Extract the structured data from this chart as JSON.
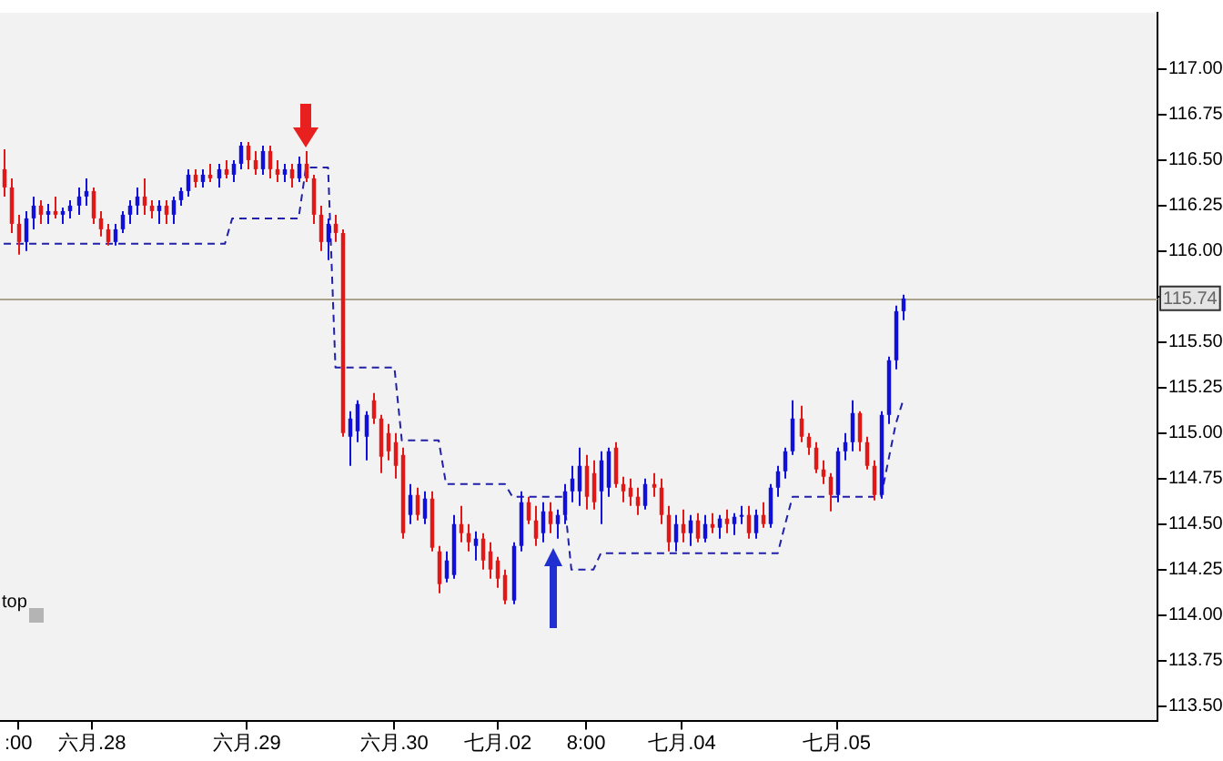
{
  "chart_data": {
    "type": "candlestick",
    "categories": [
      null,
      null,
      ":00",
      null,
      null,
      null,
      null,
      null,
      null,
      null,
      null,
      null,
      "六月.28",
      null,
      null,
      null,
      null,
      null,
      null,
      null,
      null,
      null,
      null,
      null,
      null,
      null,
      null,
      null,
      null,
      null,
      null,
      null,
      null,
      "六月.29",
      null,
      null,
      null,
      null,
      null,
      null,
      null,
      null,
      null,
      null,
      null,
      null,
      null,
      null,
      null,
      null,
      null,
      null,
      null,
      "六月.30",
      null,
      null,
      null,
      null,
      null,
      null,
      null,
      null,
      null,
      null,
      null,
      null,
      null,
      "七月.02",
      null,
      null,
      null,
      null,
      null,
      null,
      null,
      null,
      null,
      null,
      null,
      "8:00",
      null,
      null,
      null,
      null,
      null,
      null,
      null,
      null,
      null,
      null,
      null,
      null,
      "七月.04",
      null,
      null,
      null,
      null,
      null,
      null,
      null,
      null,
      null,
      null,
      null,
      null,
      null,
      null,
      null,
      null,
      null,
      null,
      null,
      null,
      "七月.05",
      null,
      null,
      null,
      null,
      null,
      null,
      null,
      null,
      null,
      null,
      null,
      null,
      null,
      null,
      null,
      null,
      null,
      null,
      null,
      null,
      null,
      null,
      null,
      null,
      null,
      null,
      null,
      null,
      null,
      null,
      null,
      null,
      null,
      null,
      null,
      null,
      null,
      null,
      null,
      null,
      null,
      null,
      null
    ],
    "ohlc": [
      [
        116.45,
        116.56,
        116.3,
        116.35
      ],
      [
        116.35,
        116.4,
        116.1,
        116.15
      ],
      [
        116.15,
        116.2,
        115.98,
        116.05
      ],
      [
        116.05,
        116.22,
        116.0,
        116.18
      ],
      [
        116.18,
        116.3,
        116.12,
        116.25
      ],
      [
        116.25,
        116.28,
        116.15,
        116.2
      ],
      [
        116.2,
        116.26,
        116.15,
        116.22
      ],
      [
        116.22,
        116.3,
        116.18,
        116.2
      ],
      [
        116.2,
        116.24,
        116.15,
        116.22
      ],
      [
        116.22,
        116.28,
        116.18,
        116.25
      ],
      [
        116.25,
        116.35,
        116.2,
        116.3
      ],
      [
        116.3,
        116.4,
        116.25,
        116.33
      ],
      [
        116.33,
        116.35,
        116.15,
        116.18
      ],
      [
        116.18,
        116.22,
        116.08,
        116.12
      ],
      [
        116.12,
        116.15,
        116.03,
        116.05
      ],
      [
        116.05,
        116.15,
        116.03,
        116.12
      ],
      [
        116.12,
        116.22,
        116.1,
        116.2
      ],
      [
        116.2,
        116.28,
        116.15,
        116.25
      ],
      [
        116.25,
        116.35,
        116.2,
        116.3
      ],
      [
        116.3,
        116.4,
        116.2,
        116.25
      ],
      [
        116.25,
        116.28,
        116.18,
        116.22
      ],
      [
        116.22,
        116.28,
        116.15,
        116.25
      ],
      [
        116.25,
        116.28,
        116.15,
        116.2
      ],
      [
        116.2,
        116.3,
        116.15,
        116.28
      ],
      [
        116.28,
        116.35,
        116.25,
        116.33
      ],
      [
        116.33,
        116.45,
        116.3,
        116.42
      ],
      [
        116.42,
        116.45,
        116.35,
        116.38
      ],
      [
        116.38,
        116.45,
        116.35,
        116.42
      ],
      [
        116.42,
        116.48,
        116.38,
        116.4
      ],
      [
        116.4,
        116.48,
        116.35,
        116.45
      ],
      [
        116.45,
        116.5,
        116.4,
        116.42
      ],
      [
        116.42,
        116.5,
        116.38,
        116.48
      ],
      [
        116.48,
        116.6,
        116.45,
        116.58
      ],
      [
        116.58,
        116.6,
        116.45,
        116.5
      ],
      [
        116.5,
        116.55,
        116.42,
        116.45
      ],
      [
        116.45,
        116.58,
        116.42,
        116.55
      ],
      [
        116.55,
        116.58,
        116.4,
        116.45
      ],
      [
        116.45,
        116.5,
        116.38,
        116.42
      ],
      [
        116.42,
        116.48,
        116.38,
        116.45
      ],
      [
        116.45,
        116.48,
        116.35,
        116.4
      ],
      [
        116.4,
        116.52,
        116.38,
        116.48
      ],
      [
        116.48,
        116.55,
        116.38,
        116.4
      ],
      [
        116.4,
        116.42,
        116.15,
        116.2
      ],
      [
        116.2,
        116.25,
        116.0,
        116.05
      ],
      [
        116.05,
        116.18,
        115.95,
        116.15
      ],
      [
        116.15,
        116.2,
        116.05,
        116.1
      ],
      [
        116.1,
        116.12,
        114.98,
        115.0
      ],
      [
        114.98,
        115.12,
        114.82,
        115.08
      ],
      [
        115.01,
        115.18,
        114.95,
        115.16
      ],
      [
        114.98,
        115.12,
        114.85,
        115.1
      ],
      [
        115.18,
        115.22,
        115.05,
        115.08
      ],
      [
        115.08,
        115.1,
        114.78,
        114.87
      ],
      [
        115.0,
        115.05,
        114.85,
        114.9
      ],
      [
        114.95,
        115.0,
        114.75,
        114.82
      ],
      [
        114.88,
        114.92,
        114.42,
        114.45
      ],
      [
        114.55,
        114.72,
        114.5,
        114.66
      ],
      [
        114.66,
        114.7,
        114.52,
        114.55
      ],
      [
        114.53,
        114.68,
        114.5,
        114.64
      ],
      [
        114.64,
        114.68,
        114.35,
        114.37
      ],
      [
        114.35,
        114.38,
        114.12,
        114.17
      ],
      [
        114.2,
        114.35,
        114.18,
        114.3
      ],
      [
        114.22,
        114.55,
        114.2,
        114.5
      ],
      [
        114.5,
        114.6,
        114.4,
        114.45
      ],
      [
        114.45,
        114.5,
        114.35,
        114.4
      ],
      [
        114.38,
        114.46,
        114.3,
        114.42
      ],
      [
        114.42,
        114.45,
        114.25,
        114.3
      ],
      [
        114.35,
        114.4,
        114.2,
        114.25
      ],
      [
        114.3,
        114.32,
        114.15,
        114.2
      ],
      [
        114.22,
        114.25,
        114.06,
        114.08
      ],
      [
        114.08,
        114.4,
        114.06,
        114.38
      ],
      [
        114.38,
        114.68,
        114.35,
        114.62
      ],
      [
        114.62,
        114.65,
        114.5,
        114.52
      ],
      [
        114.52,
        114.6,
        114.38,
        114.42
      ],
      [
        114.45,
        114.62,
        114.4,
        114.57
      ],
      [
        114.57,
        114.62,
        114.45,
        114.5
      ],
      [
        114.5,
        114.58,
        114.42,
        114.55
      ],
      [
        114.55,
        114.72,
        114.5,
        114.68
      ],
      [
        114.68,
        114.82,
        114.62,
        114.75
      ],
      [
        114.68,
        114.92,
        114.6,
        114.82
      ],
      [
        114.82,
        114.88,
        114.58,
        114.65
      ],
      [
        114.78,
        114.85,
        114.58,
        114.62
      ],
      [
        114.68,
        114.9,
        114.5,
        114.85
      ],
      [
        114.7,
        114.92,
        114.65,
        114.9
      ],
      [
        114.92,
        114.95,
        114.7,
        114.72
      ],
      [
        114.72,
        114.76,
        114.62,
        114.68
      ],
      [
        114.7,
        114.75,
        114.6,
        114.65
      ],
      [
        114.65,
        114.7,
        114.55,
        114.6
      ],
      [
        114.6,
        114.75,
        114.58,
        114.72
      ],
      [
        114.72,
        114.78,
        114.65,
        114.7
      ],
      [
        114.7,
        114.75,
        114.5,
        114.55
      ],
      [
        114.55,
        114.6,
        114.35,
        114.4
      ],
      [
        114.4,
        114.55,
        114.35,
        114.5
      ],
      [
        114.5,
        114.58,
        114.4,
        114.45
      ],
      [
        114.45,
        114.55,
        114.38,
        114.52
      ],
      [
        114.52,
        114.56,
        114.4,
        114.42
      ],
      [
        114.42,
        114.55,
        114.4,
        114.5
      ],
      [
        114.5,
        114.56,
        114.45,
        114.48
      ],
      [
        114.48,
        114.55,
        114.42,
        114.53
      ],
      [
        114.53,
        114.58,
        114.45,
        114.5
      ],
      [
        114.5,
        114.56,
        114.44,
        114.54
      ],
      [
        114.54,
        114.6,
        114.5,
        114.55
      ],
      [
        114.55,
        114.6,
        114.42,
        114.45
      ],
      [
        114.45,
        114.58,
        114.42,
        114.55
      ],
      [
        114.55,
        114.62,
        114.48,
        114.5
      ],
      [
        114.5,
        114.72,
        114.48,
        114.7
      ],
      [
        114.7,
        114.82,
        114.65,
        114.79
      ],
      [
        114.79,
        114.92,
        114.75,
        114.9
      ],
      [
        114.9,
        115.18,
        114.88,
        115.08
      ],
      [
        115.08,
        115.15,
        114.95,
        114.98
      ],
      [
        114.98,
        115.0,
        114.88,
        114.92
      ],
      [
        114.92,
        114.95,
        114.78,
        114.8
      ],
      [
        114.8,
        114.85,
        114.72,
        114.76
      ],
      [
        114.76,
        114.78,
        114.57,
        114.66
      ],
      [
        114.66,
        114.92,
        114.62,
        114.9
      ],
      [
        114.9,
        115.0,
        114.85,
        114.95
      ],
      [
        114.95,
        115.18,
        114.9,
        115.11
      ],
      [
        115.11,
        115.12,
        114.9,
        114.95
      ],
      [
        114.95,
        114.98,
        114.8,
        114.82
      ],
      [
        114.82,
        114.85,
        114.63,
        114.66
      ],
      [
        114.66,
        115.12,
        114.64,
        115.1
      ],
      [
        115.1,
        115.42,
        115.05,
        115.4
      ],
      [
        115.4,
        115.7,
        115.35,
        115.67
      ],
      [
        115.67,
        115.76,
        115.62,
        115.74
      ],
      null,
      null,
      null,
      null,
      null,
      null,
      null,
      null,
      null,
      null,
      null,
      null,
      null,
      null,
      null,
      null,
      null,
      null,
      null,
      null,
      null,
      null,
      null,
      null,
      null,
      null,
      null,
      null,
      null,
      null,
      null,
      null,
      null,
      null
    ],
    "series": [
      {
        "type": "line",
        "color": "#2020a8",
        "line_style": "dashed",
        "values": [
          116.04,
          116.04,
          116.04,
          116.04,
          116.04,
          116.04,
          116.04,
          116.04,
          116.04,
          116.04,
          116.04,
          116.04,
          116.04,
          116.04,
          116.04,
          116.04,
          116.04,
          116.04,
          116.04,
          116.04,
          116.04,
          116.04,
          116.04,
          116.04,
          116.04,
          116.04,
          116.04,
          116.04,
          116.04,
          116.04,
          116.04,
          116.18,
          116.18,
          116.18,
          116.18,
          116.18,
          116.18,
          116.18,
          116.18,
          116.18,
          116.18,
          116.46,
          116.46,
          116.46,
          116.46,
          115.36,
          115.36,
          115.36,
          115.36,
          115.36,
          115.36,
          115.36,
          115.36,
          115.36,
          114.96,
          114.96,
          114.96,
          114.96,
          114.96,
          114.96,
          114.72,
          114.72,
          114.72,
          114.72,
          114.72,
          114.72,
          114.72,
          114.72,
          114.72,
          114.65,
          114.65,
          114.65,
          114.65,
          114.65,
          114.65,
          114.65,
          114.65,
          114.25,
          114.25,
          114.25,
          114.25,
          114.34,
          114.34,
          114.34,
          114.34,
          114.34,
          114.34,
          114.34,
          114.34,
          114.34,
          114.34,
          114.34,
          114.34,
          114.34,
          114.34,
          114.34,
          114.34,
          114.34,
          114.34,
          114.34,
          114.34,
          114.34,
          114.34,
          114.34,
          114.34,
          114.34,
          114.5,
          114.65,
          114.65,
          114.65,
          114.65,
          114.65,
          114.65,
          114.65,
          114.65,
          114.65,
          114.65,
          114.65,
          114.65,
          114.65,
          114.85,
          115.05,
          115.18,
          null,
          null,
          null,
          null,
          null,
          null,
          null,
          null,
          null,
          null,
          null,
          null,
          null,
          null,
          null,
          null,
          null,
          null,
          null,
          null,
          null,
          null,
          null,
          null,
          null,
          null,
          null,
          null,
          null,
          null,
          null,
          null,
          null,
          null
        ]
      }
    ],
    "ylim": [
      113.42,
      117.31
    ],
    "yticks": [
      {
        "value": 113.5,
        "label": "113.50"
      },
      {
        "value": 113.75,
        "label": "113.75"
      },
      {
        "value": 114,
        "label": "114.00"
      },
      {
        "value": 114.25,
        "label": "114.25"
      },
      {
        "value": 114.5,
        "label": "114.50"
      },
      {
        "value": 114.75,
        "label": "114.75"
      },
      {
        "value": 115,
        "label": "115.00"
      },
      {
        "value": 115.25,
        "label": "115.25"
      },
      {
        "value": 115.5,
        "label": "115.50"
      },
      {
        "value": 115.75,
        "label": null
      },
      {
        "value": 116,
        "label": "116.00"
      },
      {
        "value": 116.25,
        "label": "116.25"
      },
      {
        "value": 116.5,
        "label": "116.50"
      },
      {
        "value": 116.75,
        "label": "116.75"
      },
      {
        "value": 117,
        "label": "117.00"
      }
    ],
    "ref_lines": [
      {
        "axis": "y",
        "value": 115.74,
        "label": "115.74",
        "color": "#aaa48e"
      }
    ],
    "annotations": [
      "top"
    ]
  }
}
